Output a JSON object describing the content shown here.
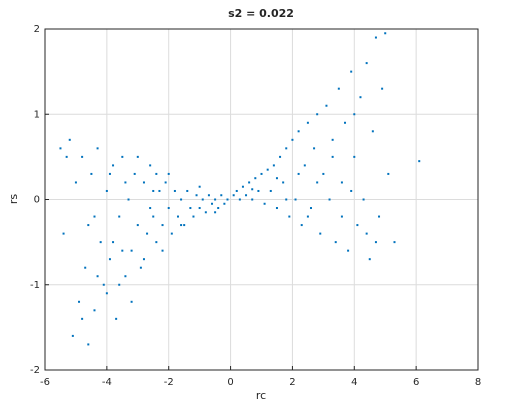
{
  "chart_data": {
    "type": "scatter",
    "title": "s2 = 0.022",
    "x_label": "rc",
    "y_label": "rs",
    "x": [
      -5.4,
      -5.2,
      -5.1,
      -5.0,
      -4.9,
      -4.8,
      -4.7,
      -4.6,
      -4.5,
      -4.4,
      -4.3,
      -4.2,
      -4.1,
      -4.0,
      -3.9,
      -3.8,
      -3.7,
      -3.6,
      -3.5,
      -3.4,
      -3.3,
      -3.2,
      -3.1,
      -3.0,
      -2.9,
      -2.8,
      -2.7,
      -2.6,
      -2.5,
      -2.4,
      -2.3,
      -2.2,
      -2.1,
      -2.0,
      -1.9,
      -1.8,
      -1.7,
      -1.6,
      -1.5,
      -1.4,
      -1.3,
      -1.2,
      -1.1,
      -1.0,
      -0.9,
      -0.8,
      -0.7,
      -0.6,
      -0.5,
      -0.4,
      -0.3,
      -0.2,
      -0.1,
      -4.6,
      -4.3,
      -4.0,
      -3.8,
      -3.6,
      -3.4,
      -3.2,
      -3.0,
      -2.8,
      -2.6,
      -2.4,
      -2.2,
      -2.0,
      -3.9,
      -4.4,
      -5.3,
      -5.5,
      -4.8,
      -3.5,
      -2.5,
      -1.6,
      -1.0,
      -0.5,
      0.1,
      0.2,
      0.3,
      0.4,
      0.5,
      0.6,
      0.7,
      0.8,
      0.9,
      1.0,
      1.1,
      1.2,
      1.3,
      1.4,
      1.5,
      1.6,
      1.7,
      1.8,
      1.9,
      2.0,
      2.1,
      2.2,
      2.3,
      2.4,
      2.5,
      2.6,
      2.7,
      2.8,
      2.9,
      3.0,
      3.1,
      3.2,
      3.3,
      3.4,
      3.5,
      3.6,
      3.7,
      3.8,
      3.9,
      4.0,
      4.1,
      4.2,
      4.3,
      4.4,
      4.5,
      4.6,
      4.7,
      4.8,
      4.9,
      5.0,
      5.1,
      5.3,
      6.1,
      4.4,
      3.6,
      2.8,
      2.2,
      1.5,
      0.7,
      3.3,
      4.0,
      2.5,
      4.7,
      1.8,
      3.9
    ],
    "series": [
      {
        "color": "#0072bd",
        "values": [
          -0.4,
          0.7,
          -1.6,
          0.2,
          -1.2,
          0.5,
          -0.8,
          -1.7,
          0.3,
          -1.3,
          0.6,
          -0.5,
          -1.0,
          0.1,
          -0.7,
          0.4,
          -1.4,
          -0.2,
          0.5,
          -0.9,
          0.0,
          -0.6,
          0.3,
          -0.3,
          -0.8,
          0.2,
          -0.4,
          0.4,
          -0.2,
          -0.5,
          0.1,
          -0.3,
          0.2,
          -0.1,
          -0.4,
          0.1,
          -0.2,
          0.0,
          -0.3,
          0.1,
          -0.1,
          -0.2,
          0.05,
          -0.1,
          0.0,
          -0.15,
          0.05,
          -0.05,
          0.0,
          -0.1,
          0.05,
          -0.05,
          0.0,
          -0.3,
          -0.9,
          -1.1,
          -0.5,
          -1.0,
          0.2,
          -1.2,
          0.5,
          -0.7,
          -0.1,
          0.3,
          -0.6,
          0.3,
          0.3,
          -0.2,
          0.5,
          0.6,
          -1.4,
          -0.6,
          0.1,
          -0.3,
          0.15,
          -0.15,
          0.05,
          0.1,
          0.0,
          0.15,
          0.05,
          0.2,
          0.0,
          0.25,
          0.1,
          0.3,
          -0.05,
          0.35,
          0.1,
          0.4,
          -0.1,
          0.5,
          0.2,
          0.6,
          -0.2,
          0.7,
          0.0,
          0.8,
          -0.3,
          0.4,
          0.9,
          -0.1,
          0.6,
          1.0,
          -0.4,
          0.3,
          1.1,
          0.0,
          0.7,
          -0.5,
          1.3,
          0.2,
          0.9,
          -0.6,
          1.5,
          0.5,
          -0.3,
          1.2,
          0.0,
          1.6,
          -0.7,
          0.8,
          1.9,
          -0.2,
          1.3,
          1.95,
          0.3,
          -0.5,
          0.45,
          -0.4,
          -0.2,
          0.2,
          0.3,
          0.25,
          0.12,
          0.5,
          1.0,
          -0.2,
          -0.5,
          0.0,
          0.1
        ]
      }
    ],
    "xlim": [
      -6,
      8
    ],
    "xticks": [
      -6,
      -4,
      -2,
      0,
      2,
      4,
      6,
      8
    ],
    "ylim": [
      -2,
      2
    ],
    "yticks": [
      -2,
      -1,
      0,
      1,
      2
    ],
    "grid": true
  }
}
